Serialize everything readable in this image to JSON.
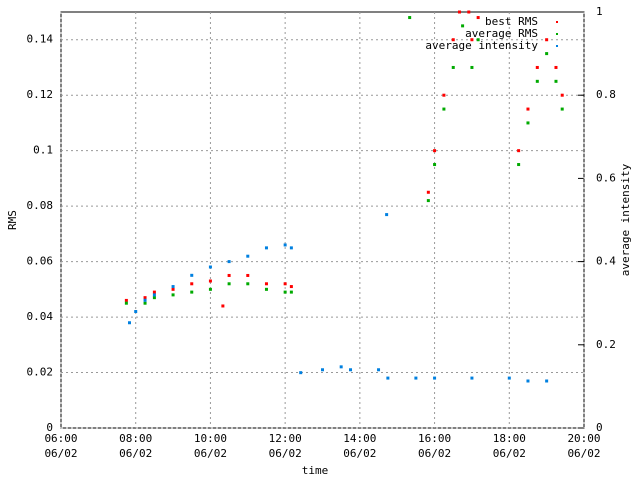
{
  "chart_data": {
    "type": "scatter",
    "xlabel": "time",
    "ylabel": "RMS",
    "y2label": "average intensity",
    "xlim": [
      "06/02 06:00",
      "06/02 20:00"
    ],
    "xticks": [
      {
        "value": "06/02 06:00",
        "label": [
          "06:00",
          "06/02"
        ]
      },
      {
        "value": "06/02 08:00",
        "label": [
          "08:00",
          "06/02"
        ]
      },
      {
        "value": "06/02 10:00",
        "label": [
          "10:00",
          "06/02"
        ]
      },
      {
        "value": "06/02 12:00",
        "label": [
          "12:00",
          "06/02"
        ]
      },
      {
        "value": "06/02 14:00",
        "label": [
          "14:00",
          "06/02"
        ]
      },
      {
        "value": "06/02 16:00",
        "label": [
          "16:00",
          "06/02"
        ]
      },
      {
        "value": "06/02 18:00",
        "label": [
          "18:00",
          "06/02"
        ]
      },
      {
        "value": "06/02 20:00",
        "label": [
          "20:00",
          "06/02"
        ]
      }
    ],
    "ylim": [
      0,
      0.15
    ],
    "yticks": [
      0,
      0.02,
      0.04,
      0.06,
      0.08,
      0.1,
      0.12,
      0.14
    ],
    "y2lim": [
      0,
      1
    ],
    "y2ticks": [
      0,
      0.2,
      0.4,
      0.6,
      0.8,
      1
    ],
    "grid": true,
    "legend": "top right",
    "series": [
      {
        "name": "best RMS",
        "color": "#ff0000",
        "x": [
          "06/02 07:45",
          "06/02 08:15",
          "06/02 08:30",
          "06/02 09:00",
          "06/02 09:30",
          "06/02 10:00",
          "06/02 10:20",
          "06/02 10:30",
          "06/02 11:00",
          "06/02 11:30",
          "06/02 12:00",
          "06/02 12:10",
          "06/02 15:50",
          "06/02 16:00",
          "06/02 16:15",
          "06/02 16:30",
          "06/02 16:40",
          "06/02 16:55",
          "06/02 17:00",
          "06/02 17:10",
          "06/02 18:15",
          "06/02 18:30",
          "06/02 18:45",
          "06/02 19:00",
          "06/02 19:15",
          "06/02 19:25"
        ],
        "values": [
          0.046,
          0.047,
          0.049,
          0.05,
          0.052,
          0.053,
          0.044,
          0.055,
          0.055,
          0.052,
          0.052,
          0.051,
          0.085,
          0.1,
          0.12,
          0.14,
          0.15,
          0.15,
          0.14,
          0.148,
          0.1,
          0.115,
          0.13,
          0.14,
          0.13,
          0.12
        ]
      },
      {
        "name": "average RMS",
        "color": "#00aa00",
        "x": [
          "06/02 07:45",
          "06/02 08:15",
          "06/02 08:30",
          "06/02 09:00",
          "06/02 09:30",
          "06/02 10:00",
          "06/02 10:30",
          "06/02 11:00",
          "06/02 11:30",
          "06/02 12:00",
          "06/02 12:10",
          "06/02 15:20",
          "06/02 15:50",
          "06/02 16:00",
          "06/02 16:15",
          "06/02 16:30",
          "06/02 16:45",
          "06/02 17:00",
          "06/02 17:10",
          "06/02 18:15",
          "06/02 18:30",
          "06/02 18:45",
          "06/02 19:00",
          "06/02 19:15",
          "06/02 19:25"
        ],
        "values": [
          0.045,
          0.045,
          0.047,
          0.048,
          0.049,
          0.05,
          0.052,
          0.052,
          0.05,
          0.049,
          0.049,
          0.148,
          0.082,
          0.095,
          0.115,
          0.13,
          0.145,
          0.13,
          0.14,
          0.095,
          0.11,
          0.125,
          0.135,
          0.125,
          0.115
        ]
      },
      {
        "name": "average intensity",
        "color": "#0080e0",
        "axis": "y2",
        "x": [
          "06/02 07:50",
          "06/02 08:00",
          "06/02 08:15",
          "06/02 08:30",
          "06/02 09:00",
          "06/02 09:30",
          "06/02 10:00",
          "06/02 10:30",
          "06/02 11:00",
          "06/02 11:30",
          "06/02 12:00",
          "06/02 12:10",
          "06/02 12:25",
          "06/02 13:00",
          "06/02 13:30",
          "06/02 13:45",
          "06/02 14:30",
          "06/02 14:43",
          "06/02 14:45",
          "06/02 15:30",
          "06/02 16:00",
          "06/02 17:00",
          "06/02 18:00",
          "06/02 18:30",
          "06/02 19:00"
        ],
        "values": [
          0.253,
          0.28,
          0.307,
          0.32,
          0.34,
          0.367,
          0.387,
          0.4,
          0.413,
          0.433,
          0.44,
          0.433,
          0.133,
          0.14,
          0.147,
          0.14,
          0.14,
          0.513,
          0.12,
          0.12,
          0.12,
          0.12,
          0.12,
          0.113,
          0.113
        ]
      }
    ]
  }
}
